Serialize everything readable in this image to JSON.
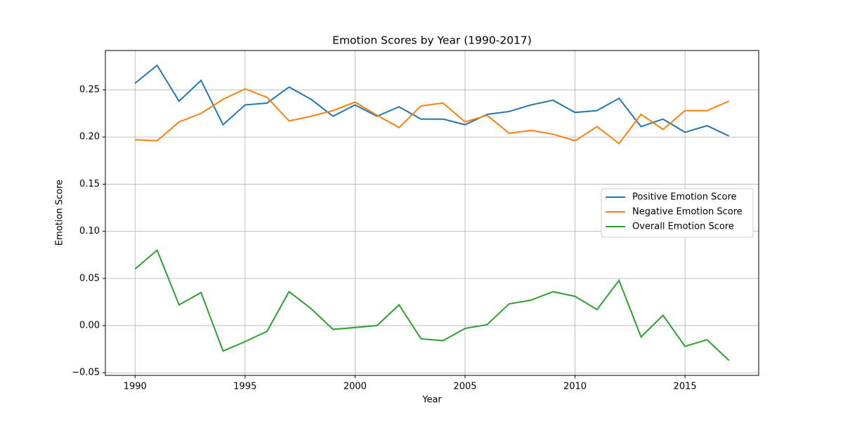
{
  "chart_data": {
    "type": "line",
    "title": "Emotion Scores by Year (1990-2017)",
    "x_label": "Year",
    "y_label": "Emotion Score",
    "x": [
      1990,
      1991,
      1992,
      1993,
      1994,
      1995,
      1996,
      1997,
      1998,
      1999,
      2000,
      2001,
      2002,
      2003,
      2004,
      2005,
      2006,
      2007,
      2008,
      2009,
      2010,
      2011,
      2012,
      2013,
      2014,
      2015,
      2016,
      2017
    ],
    "series": [
      {
        "name": "Positive Emotion Score",
        "color": "#1f77b4",
        "values": [
          0.257,
          0.276,
          0.238,
          0.26,
          0.213,
          0.234,
          0.236,
          0.253,
          0.24,
          0.222,
          0.234,
          0.222,
          0.232,
          0.219,
          0.219,
          0.213,
          0.224,
          0.227,
          0.234,
          0.239,
          0.226,
          0.228,
          0.241,
          0.211,
          0.219,
          0.205,
          0.212,
          0.201
        ]
      },
      {
        "name": "Negative Emotion Score",
        "color": "#ff7f0e",
        "values": [
          0.197,
          0.196,
          0.216,
          0.225,
          0.24,
          0.251,
          0.242,
          0.217,
          0.222,
          0.228,
          0.237,
          0.223,
          0.21,
          0.233,
          0.236,
          0.216,
          0.223,
          0.204,
          0.207,
          0.203,
          0.196,
          0.211,
          0.193,
          0.224,
          0.208,
          0.228,
          0.228,
          0.238
        ]
      },
      {
        "name": "Overall Emotion Score",
        "color": "#2ca02c",
        "values": [
          0.06,
          0.08,
          0.022,
          0.035,
          -0.027,
          -0.017,
          -0.006,
          0.036,
          0.018,
          -0.004,
          -0.002,
          0.0,
          0.022,
          -0.014,
          -0.016,
          -0.003,
          0.001,
          0.023,
          0.027,
          0.036,
          0.031,
          0.017,
          0.048,
          -0.012,
          0.011,
          -0.022,
          -0.015,
          -0.037
        ]
      }
    ],
    "xlim": [
      1988.65,
      2018.35
    ],
    "xticks": [
      1990,
      1995,
      2000,
      2005,
      2010,
      2015
    ],
    "ylim": [
      -0.0528,
      0.2917
    ],
    "yticks": [
      {
        "value": -0.05,
        "label": "−0.05"
      },
      {
        "value": 0,
        "label": "0.00"
      },
      0.05,
      {
        "value": 0.1,
        "label": "0.10"
      },
      0.15,
      {
        "value": 0.2,
        "label": "0.20"
      },
      0.25
    ],
    "grid": true,
    "legend_position": "center right"
  }
}
